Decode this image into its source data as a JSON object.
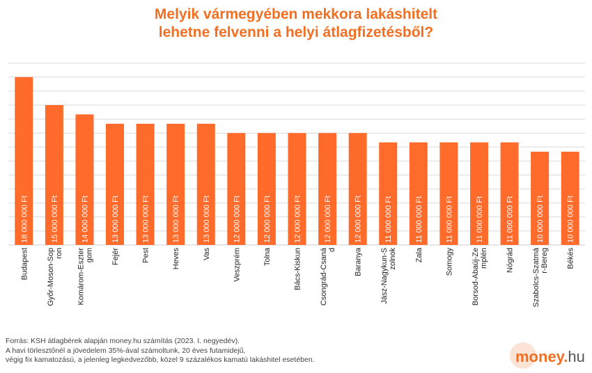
{
  "title": {
    "line1": "Melyik vármegyében mekkora lakáshitelt",
    "line2": "lehetne felvenni a helyi átlagfizetésből?"
  },
  "chart_data": {
    "type": "bar",
    "title": "Melyik vármegyében mekkora lakáshitelt lehetne felvenni a helyi átlagfizetésből?",
    "xlabel": "",
    "ylabel": "",
    "ylim": [
      0,
      20000000
    ],
    "grid": true,
    "bar_color": "#ff6b2b",
    "categories": [
      "Budapest",
      "Győr-Moson-Sopron",
      "Komárom-Esztergom",
      "Fejér",
      "Pest",
      "Heves",
      "Vas",
      "Veszprém",
      "Tolna",
      "Bács-Kiskun",
      "Csongrád-Csanád",
      "Baranya",
      "Jász-Nagykun-Szolnok",
      "Zala",
      "Somogy",
      "Borsod-Abaúj-Zemplén",
      "Nógrád",
      "Szabolcs-Szatmár-Bereg",
      "Békés"
    ],
    "category_label_lines": [
      [
        "Budapest"
      ],
      [
        "Győr-Moson-Sop",
        "ron"
      ],
      [
        "Komárom-Eszter",
        "gom"
      ],
      [
        "Fejér"
      ],
      [
        "Pest"
      ],
      [
        "Heves"
      ],
      [
        "Vas"
      ],
      [
        "Veszprém"
      ],
      [
        "Tolna"
      ],
      [
        "Bács-Kiskun"
      ],
      [
        "Csongrád-Csaná",
        "d"
      ],
      [
        "Baranya"
      ],
      [
        "Jász-Nagykun-S",
        "zolnok"
      ],
      [
        "Zala"
      ],
      [
        "Somogy"
      ],
      [
        "Borsod-Abaúj-Ze",
        "mplén"
      ],
      [
        "Nógrád"
      ],
      [
        "Szabolcs-Szatmá",
        "r-Bereg"
      ],
      [
        "Békés"
      ]
    ],
    "values": [
      18000000,
      15000000,
      14000000,
      13000000,
      13000000,
      13000000,
      13000000,
      12000000,
      12000000,
      12000000,
      12000000,
      12000000,
      11000000,
      11000000,
      11000000,
      11000000,
      11000000,
      10000000,
      10000000
    ],
    "data_labels": [
      "18 000 000 Ft",
      "15 000 000 Ft",
      "14 000 000 Ft",
      "13 000 000 Ft",
      "13 000 000 Ft",
      "13 000 000 Ft",
      "13 000 000 Ft",
      "12 000 000 Ft",
      "12 000 000 Ft",
      "12 000 000 Ft",
      "12 000 000 Ft",
      "12 000 000 Ft",
      "11 000 000 Ft",
      "11 000 000 Ft",
      "11 000 000 Ft",
      "11 000 000 Ft",
      "11 000 000 Ft",
      "10 000 000 Ft",
      "10 000 000 Ft"
    ]
  },
  "footer": {
    "line1": "Forrás: KSH átlagbérek alapján money.hu számítás (2023. I. negyedév).",
    "line2": "A havi törlesztőnél a jövedelem 35%-ával számoltunk, 20 éves futamidejű,",
    "line3": "végig fix kamatozású, a jelenleg legkedvezőbb, közel 9 százalékos kamatú lakáshitel esetében."
  },
  "logo": {
    "brand": "money",
    "dot": ".",
    "tld": "hu"
  },
  "colors": {
    "accent": "#f26f21",
    "bar": "#ff6b2b",
    "grid": "#d9d9d9"
  }
}
